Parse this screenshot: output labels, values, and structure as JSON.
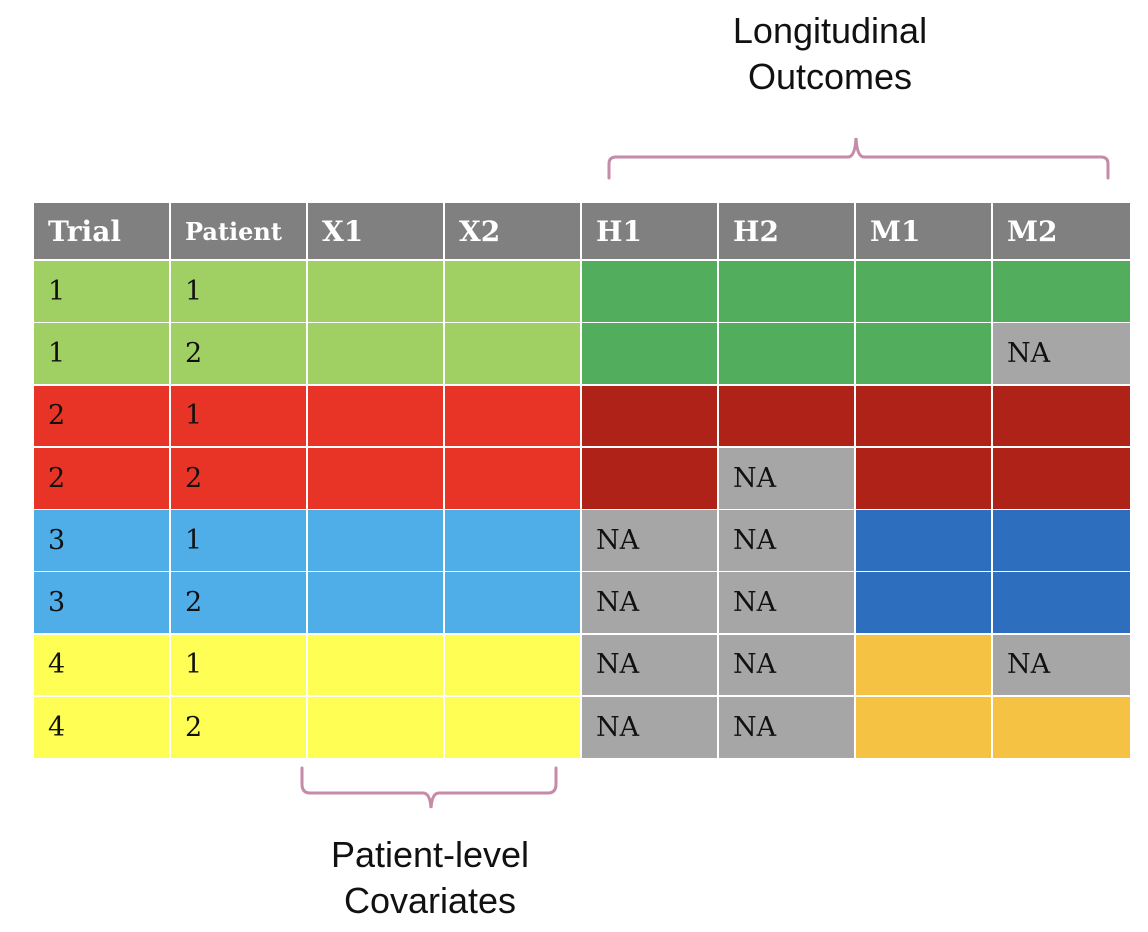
{
  "labels": {
    "top_line1": "Longitudinal",
    "top_line2": "Outcomes",
    "bottom_line1": "Patient-level",
    "bottom_line2": "Covariates"
  },
  "colors": {
    "header": "#808080",
    "na": "#A6A6A6",
    "brace": "#C58BA8",
    "trial_light": {
      "1": "#A0CF63",
      "2": "#E83426",
      "3": "#4FADE8",
      "4": "#FEFE55"
    },
    "trial_dark": {
      "1": "#52AE5D",
      "2": "#AE2218",
      "3": "#2E6EBF",
      "4": "#F5C243"
    }
  },
  "table": {
    "headers": [
      "Trial",
      "Patient",
      "X1",
      "X2",
      "H1",
      "H2",
      "M1",
      "M2"
    ],
    "rows": [
      {
        "trial": "1",
        "patient": "1",
        "outcomes": [
          "",
          "",
          "",
          ""
        ]
      },
      {
        "trial": "1",
        "patient": "2",
        "outcomes": [
          "",
          "",
          "",
          "NA"
        ]
      },
      {
        "trial": "2",
        "patient": "1",
        "outcomes": [
          "",
          "",
          "",
          ""
        ]
      },
      {
        "trial": "2",
        "patient": "2",
        "outcomes": [
          "",
          "NA",
          "",
          ""
        ]
      },
      {
        "trial": "3",
        "patient": "1",
        "outcomes": [
          "NA",
          "NA",
          "",
          ""
        ]
      },
      {
        "trial": "3",
        "patient": "2",
        "outcomes": [
          "NA",
          "NA",
          "",
          ""
        ]
      },
      {
        "trial": "4",
        "patient": "1",
        "outcomes": [
          "NA",
          "NA",
          "",
          "NA"
        ]
      },
      {
        "trial": "4",
        "patient": "2",
        "outcomes": [
          "NA",
          "NA",
          "",
          ""
        ]
      }
    ]
  }
}
